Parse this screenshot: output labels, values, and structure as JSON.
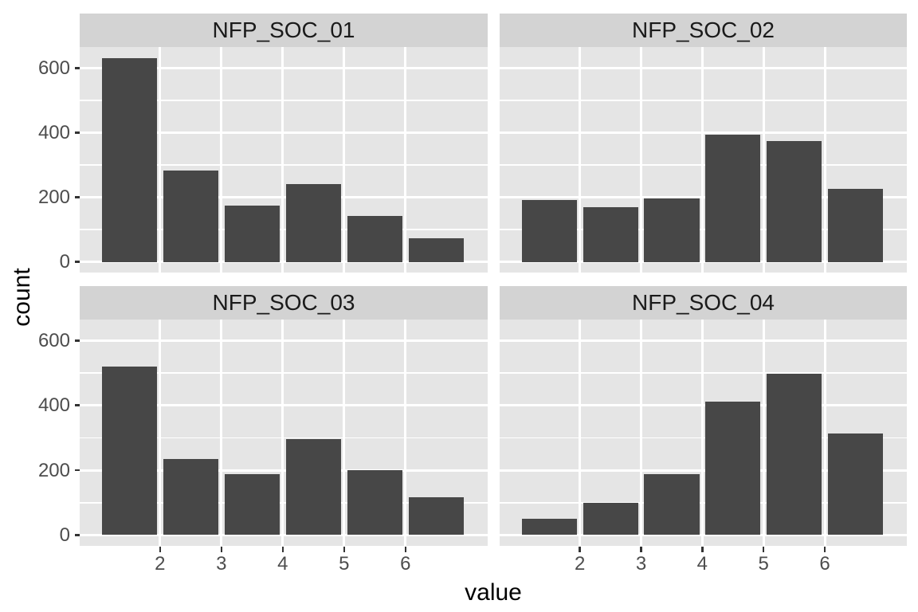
{
  "figure": {
    "x_axis_title": "value",
    "y_axis_title": "count"
  },
  "chart_data": {
    "type": "bar",
    "layout": "facet_wrap 2x2, shared axes, ggplot2 theme_grey style",
    "facets": [
      {
        "label": "NFP_SOC_01",
        "values": [
          630,
          282,
          175,
          240,
          141,
          73
        ]
      },
      {
        "label": "NFP_SOC_02",
        "values": [
          190,
          168,
          195,
          393,
          374,
          226
        ]
      },
      {
        "label": "NFP_SOC_03",
        "values": [
          520,
          235,
          187,
          297,
          200,
          117
        ]
      },
      {
        "label": "NFP_SOC_04",
        "values": [
          50,
          99,
          187,
          412,
          497,
          313
        ]
      }
    ],
    "bar_centers": [
      1.5,
      2.5,
      3.5,
      4.5,
      5.5,
      6.5
    ],
    "bar_width": 0.9,
    "x_ticks": [
      2,
      3,
      4,
      5,
      6
    ],
    "y_ticks": [
      0,
      200,
      400,
      600
    ],
    "y_minor_ticks": [
      100,
      300,
      500
    ],
    "xlim": [
      0.69,
      7.34
    ],
    "ylim": [
      -32,
      666
    ],
    "xlabel": "value",
    "ylabel": "count",
    "grid": "white major + minor horizontal, white major vertical",
    "legend": "none",
    "colors": {
      "bar_fill": "#474747",
      "panel_background": "#e5e5e5",
      "strip_background": "#d3d3d3",
      "gridline": "#ffffff",
      "axis_text": "#4d4d4d",
      "strip_text": "#1a1a1a",
      "axis_title_text": "#000000",
      "tick_mark": "#333333",
      "plot_background": "#ffffff"
    }
  }
}
